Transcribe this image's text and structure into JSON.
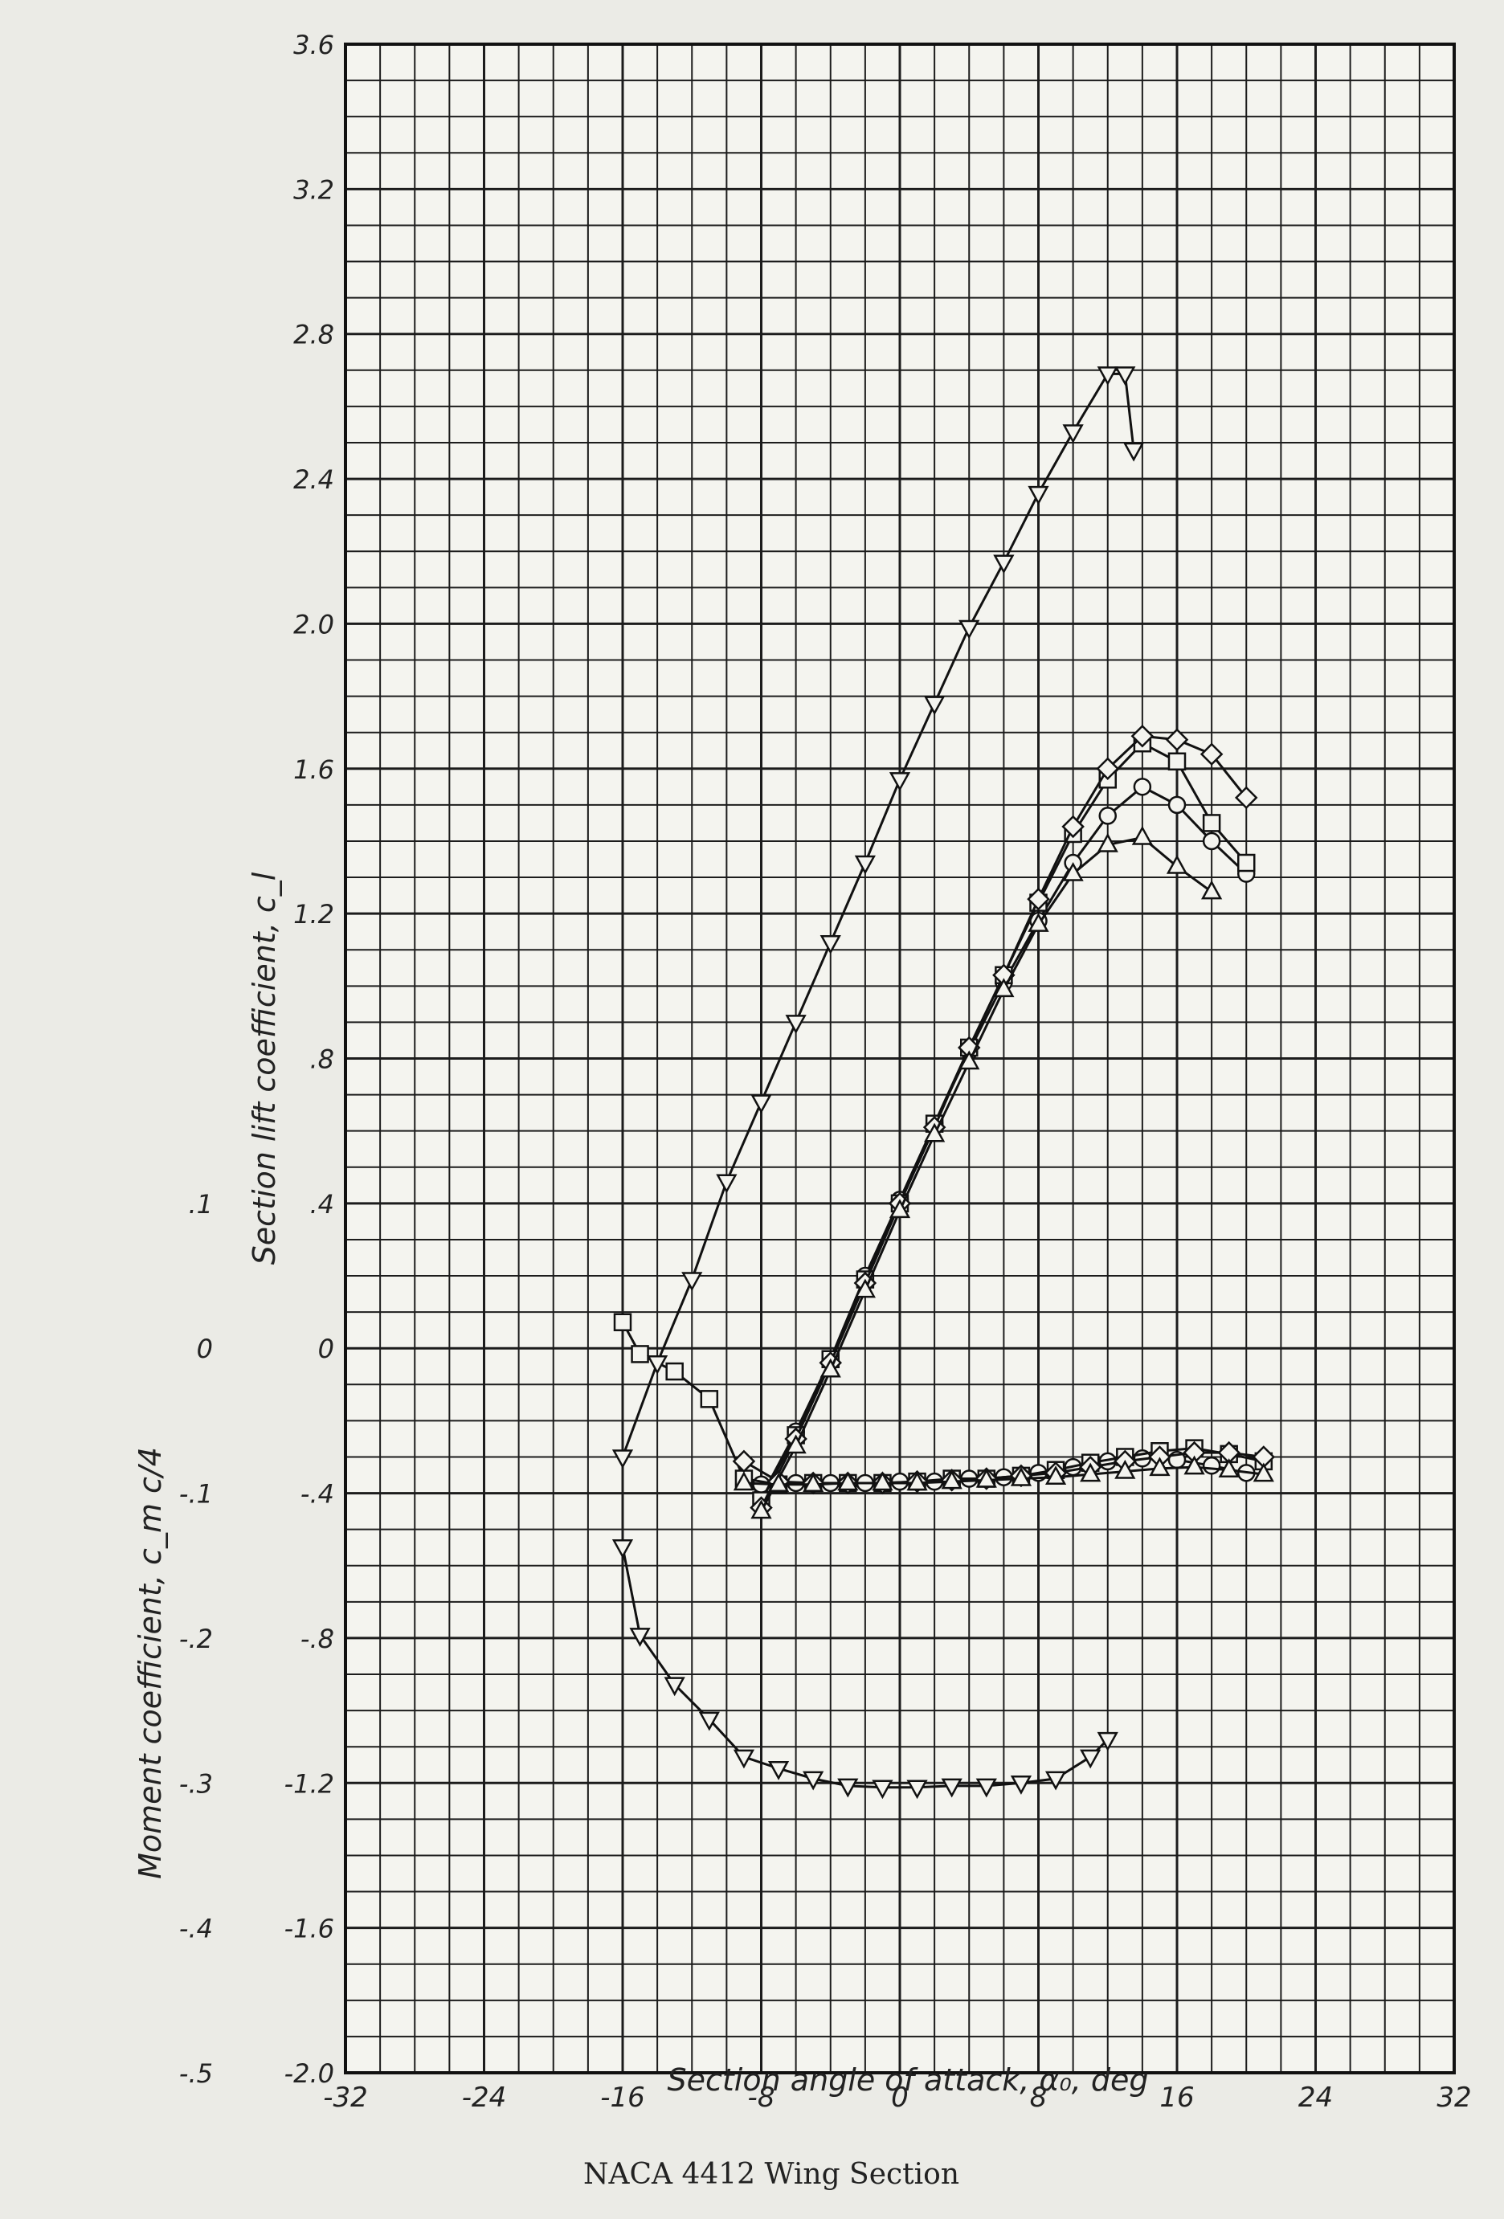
{
  "chart_data": {
    "type": "line",
    "title": "NACA 4412 Wing Section",
    "xlabel": "Section angle of attack, α₀, deg",
    "ylabel_left": "Moment coefficient, c_m c/4",
    "ylabel_right": "Section lift coefficient, c_l",
    "xlim": [
      -32,
      32
    ],
    "ylim": [
      -2.0,
      3.6
    ],
    "x_ticks": [
      "-32",
      "-24",
      "-16",
      "-8",
      "0",
      "8",
      "16",
      "24",
      "32"
    ],
    "y_ticks": [
      "-2.0",
      "-1.6",
      "-1.2",
      "-.8",
      "-.4",
      "0",
      ".4",
      ".8",
      "1.2",
      "1.6",
      "2.0",
      "2.4",
      "2.8",
      "3.2",
      "3.6"
    ],
    "moment_ticks": [
      "-.5",
      "-.4",
      "-.3",
      "-.2",
      "-.1",
      "0",
      ".1"
    ],
    "grid": true,
    "series": [
      {
        "marker": "circle",
        "lift": {
          "x": [
            -8,
            -6,
            -4,
            -2,
            0,
            2,
            4,
            6,
            8,
            10,
            12,
            14,
            16,
            18,
            20
          ],
          "y": [
            -0.41,
            -0.23,
            -0.03,
            0.2,
            0.41,
            0.62,
            0.82,
            1.01,
            1.18,
            1.34,
            1.47,
            1.55,
            1.5,
            1.4,
            1.31
          ]
        },
        "moment": {
          "x": [
            -8,
            -6,
            -4,
            -2,
            0,
            2,
            4,
            6,
            8,
            10,
            12,
            14,
            16,
            18,
            20
          ],
          "y": [
            -0.094,
            -0.093,
            -0.093,
            -0.093,
            -0.092,
            -0.092,
            -0.09,
            -0.089,
            -0.086,
            -0.082,
            -0.078,
            -0.076,
            -0.077,
            -0.081,
            -0.086
          ]
        }
      },
      {
        "marker": "square",
        "lift": {
          "x": [
            -8,
            -6,
            -4,
            -2,
            0,
            2,
            4,
            6,
            8,
            10,
            12,
            14,
            16,
            18,
            20
          ],
          "y": [
            -0.42,
            -0.24,
            -0.03,
            0.19,
            0.4,
            0.62,
            0.83,
            1.03,
            1.23,
            1.42,
            1.57,
            1.67,
            1.62,
            1.45,
            1.34
          ]
        },
        "moment": {
          "x": [
            -16,
            -15,
            -13,
            -11,
            -9,
            -7,
            -5,
            -3,
            -1,
            1,
            3,
            5,
            7,
            9,
            11,
            13,
            15,
            17,
            19,
            21
          ],
          "y": [
            0.018,
            -0.004,
            -0.016,
            -0.035,
            -0.09,
            -0.094,
            -0.093,
            -0.093,
            -0.093,
            -0.092,
            -0.09,
            -0.09,
            -0.088,
            -0.084,
            -0.079,
            -0.075,
            -0.071,
            -0.069,
            -0.073,
            -0.078
          ]
        }
      },
      {
        "marker": "diamond",
        "lift": {
          "x": [
            -8,
            -6,
            -4,
            -2,
            0,
            2,
            4,
            6,
            8,
            10,
            12,
            14,
            16,
            18,
            20
          ],
          "y": [
            -0.44,
            -0.25,
            -0.04,
            0.18,
            0.4,
            0.61,
            0.83,
            1.03,
            1.24,
            1.44,
            1.6,
            1.69,
            1.68,
            1.64,
            1.52
          ]
        },
        "moment": {
          "x": [
            -9,
            -7,
            -5,
            -3,
            -1,
            1,
            3,
            5,
            7,
            9,
            11,
            13,
            15,
            17,
            19,
            21
          ],
          "y": [
            -0.078,
            -0.092,
            -0.093,
            -0.093,
            -0.093,
            -0.092,
            -0.091,
            -0.09,
            -0.088,
            -0.086,
            -0.082,
            -0.078,
            -0.075,
            -0.072,
            -0.072,
            -0.075
          ]
        }
      },
      {
        "marker": "triangle-up",
        "lift": {
          "x": [
            -8,
            -6,
            -4,
            -2,
            0,
            2,
            4,
            6,
            8,
            10,
            12,
            14,
            16,
            18
          ],
          "y": [
            -0.45,
            -0.27,
            -0.06,
            0.16,
            0.38,
            0.59,
            0.79,
            0.99,
            1.17,
            1.31,
            1.39,
            1.41,
            1.33,
            1.26
          ]
        },
        "moment": {
          "x": [
            -9,
            -7,
            -5,
            -3,
            -1,
            1,
            3,
            5,
            7,
            9,
            11,
            13,
            15,
            17,
            19,
            21
          ],
          "y": [
            -0.093,
            -0.094,
            -0.094,
            -0.093,
            -0.093,
            -0.093,
            -0.092,
            -0.091,
            -0.09,
            -0.089,
            -0.087,
            -0.085,
            -0.083,
            -0.082,
            -0.084,
            -0.087
          ]
        }
      },
      {
        "marker": "triangle-down",
        "lift": {
          "x": [
            -16,
            -14,
            -12,
            -10,
            -8,
            -6,
            -4,
            -2,
            0,
            2,
            4,
            6,
            8,
            10,
            12,
            13,
            13.5
          ],
          "y": [
            -0.3,
            -0.04,
            0.19,
            0.46,
            0.68,
            0.9,
            1.12,
            1.34,
            1.57,
            1.78,
            1.99,
            2.17,
            2.36,
            2.53,
            2.69,
            2.69,
            2.48
          ]
        },
        "moment": {
          "x": [
            -16,
            -15,
            -13,
            -11,
            -9,
            -7,
            -5,
            -3,
            -1,
            1,
            3,
            5,
            7,
            9,
            11,
            12
          ],
          "y": [
            -0.137,
            -0.198,
            -0.232,
            -0.256,
            -0.282,
            -0.29,
            -0.297,
            -0.302,
            -0.303,
            -0.303,
            -0.302,
            -0.302,
            -0.3,
            -0.297,
            -0.282,
            -0.27
          ]
        }
      }
    ]
  }
}
